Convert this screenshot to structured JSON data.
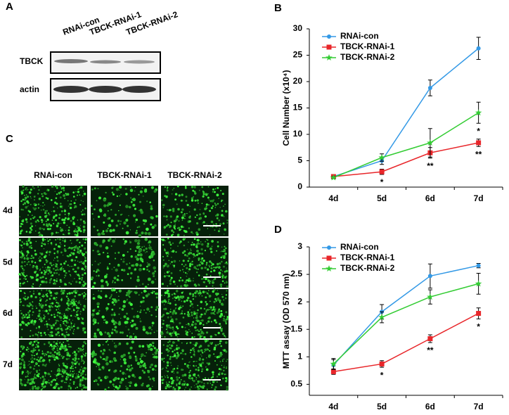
{
  "panel_labels": [
    "A",
    "B",
    "C",
    "D"
  ],
  "blot": {
    "lanes": [
      "RNAi-con",
      "TBCK-RNAi-1",
      "TBCK-RNAi-2"
    ],
    "rows": [
      "TBCK",
      "actin"
    ]
  },
  "images": {
    "columns": [
      "RNAi-con",
      "TBCK-RNAi-1",
      "TBCK-RNAi-2"
    ],
    "rows": [
      "4d",
      "5d",
      "6d",
      "7d"
    ]
  },
  "chart_data": [
    {
      "type": "line",
      "y_label": "Cell Number  (x10⁴)",
      "categories": [
        "4d",
        "5d",
        "6d",
        "7d"
      ],
      "ylim": [
        0,
        30
      ],
      "yticks": [
        0,
        5,
        10,
        15,
        20,
        25,
        30
      ],
      "series": [
        {
          "name": "RNAi-con",
          "color": "#3399e6",
          "marker": "circle",
          "values": [
            2,
            5,
            18.8,
            26.3
          ],
          "errors": [
            0.3,
            0.7,
            1.5,
            2.1
          ]
        },
        {
          "name": "TBCK-RNAi-1",
          "color": "#e8262a",
          "marker": "square",
          "values": [
            2,
            2.9,
            6.5,
            8.4
          ],
          "errors": [
            0.2,
            0.5,
            1,
            0.7
          ]
        },
        {
          "name": "TBCK-RNAi-2",
          "color": "#33cc33",
          "marker": "star",
          "values": [
            1.8,
            5.6,
            8.4,
            14.1
          ],
          "errors": [
            0.2,
            0.7,
            2.7,
            2
          ]
        }
      ],
      "annotations": [
        {
          "text": "*",
          "x": "5d",
          "series": "TBCK-RNAi-1"
        },
        {
          "text": "**",
          "x": "6d",
          "series": "TBCK-RNAi-1"
        },
        {
          "text": "*",
          "x": "7d",
          "series": "TBCK-RNAi-2"
        },
        {
          "text": "**",
          "x": "7d",
          "series": "TBCK-RNAi-1"
        }
      ]
    },
    {
      "type": "line",
      "y_label": "MTT assay (OD 570 nm)",
      "categories": [
        "4d",
        "5d",
        "6d",
        "7d"
      ],
      "ylim": [
        0.3,
        3
      ],
      "yticks": [
        0.5,
        1,
        1.5,
        2,
        2.5,
        3
      ],
      "series": [
        {
          "name": "RNAi-con",
          "color": "#3399e6",
          "marker": "circle",
          "values": [
            0.85,
            1.82,
            2.47,
            2.66
          ],
          "errors": [
            0.1,
            0.13,
            0.22,
            0.04
          ]
        },
        {
          "name": "TBCK-RNAi-1",
          "color": "#e8262a",
          "marker": "square",
          "values": [
            0.73,
            0.87,
            1.33,
            1.79
          ],
          "errors": [
            0.05,
            0.06,
            0.07,
            0.1
          ]
        },
        {
          "name": "TBCK-RNAi-2",
          "color": "#33cc33",
          "marker": "star",
          "values": [
            0.87,
            1.72,
            2.09,
            2.33
          ],
          "errors": [
            0.1,
            0.1,
            0.13,
            0.19
          ]
        }
      ],
      "annotations": [
        {
          "text": "*",
          "x": "5d",
          "series": "TBCK-RNAi-1"
        },
        {
          "text": "**",
          "x": "6d",
          "series": "TBCK-RNAi-1"
        },
        {
          "text": "*",
          "x": "7d",
          "series": "TBCK-RNAi-1"
        }
      ]
    }
  ]
}
